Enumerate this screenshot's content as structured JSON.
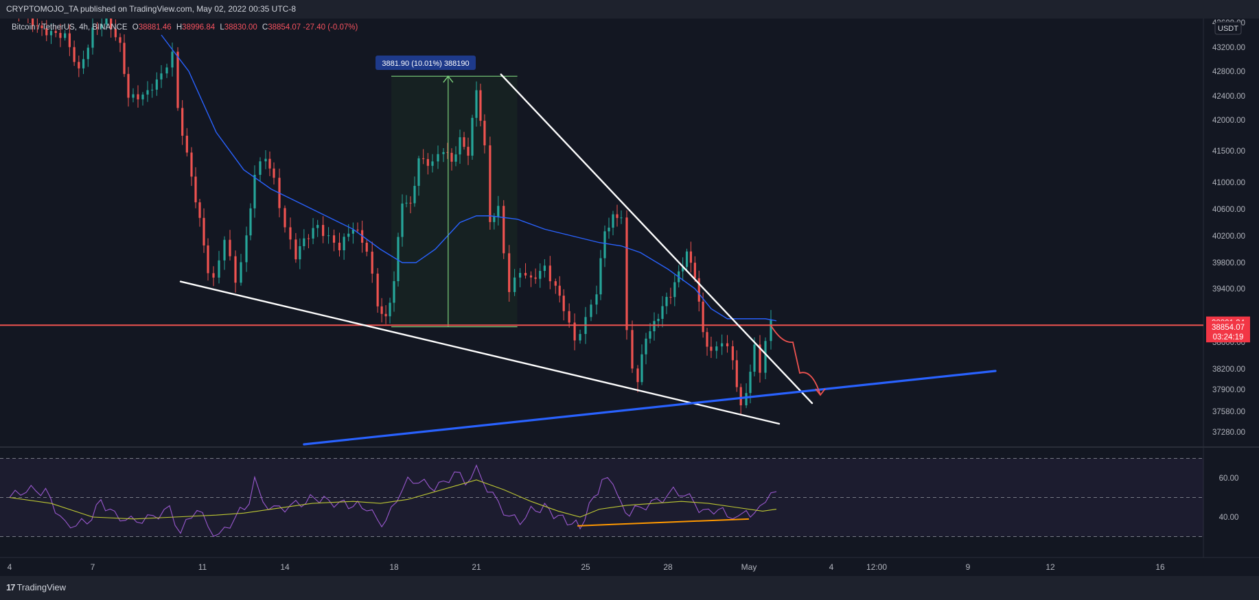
{
  "header": {
    "publish_line": "CRYPTOMOJO_TA published on TradingView.com, May 02, 2022 00:35 UTC-8"
  },
  "legend": {
    "symbol": "Bitcoin / TetherUS, 4h, BINANCE",
    "o_label": "O",
    "o": "38881.46",
    "h_label": "H",
    "h": "38996.84",
    "l_label": "L",
    "l": "38830.00",
    "c_label": "C",
    "c": "38854.07",
    "change": "-27.40 (-0.07%)"
  },
  "footer": {
    "logo_mark": "17",
    "logo_text": "TradingView"
  },
  "chart_data": [
    {
      "type": "candlestick",
      "title": "Bitcoin / TetherUS, 4h, BINANCE",
      "currency_badge": "USDT",
      "y_ticks": [
        "43200.00",
        "42800.00",
        "42400.00",
        "42000.00",
        "41500.00",
        "41000.00",
        "40600.00",
        "40200.00",
        "39800.00",
        "39400.00",
        "38600.00",
        "38200.00",
        "37900.00",
        "37580.00",
        "37280.00"
      ],
      "y_top_partial_tick": "43600.00",
      "x_ticks": [
        {
          "label": "4",
          "date": "2022-04-04"
        },
        {
          "label": "7",
          "date": "2022-04-07"
        },
        {
          "label": "11",
          "date": "2022-04-11"
        },
        {
          "label": "14",
          "date": "2022-04-14"
        },
        {
          "label": "18",
          "date": "2022-04-18"
        },
        {
          "label": "21",
          "date": "2022-04-21"
        },
        {
          "label": "25",
          "date": "2022-04-25"
        },
        {
          "label": "28",
          "date": "2022-04-28"
        },
        {
          "label": "May",
          "date": "2022-05-01"
        },
        {
          "label": "4",
          "date": "2022-05-04"
        },
        {
          "label": "12:00",
          "date": "2022-05-05"
        },
        {
          "label": "9",
          "date": "2022-05-09"
        },
        {
          "label": "12",
          "date": "2022-05-12"
        },
        {
          "label": "16",
          "date": "2022-05-16"
        }
      ],
      "close_path": [
        [
          4.0,
          43900
        ],
        [
          5.0,
          43550
        ],
        [
          6.0,
          43350
        ],
        [
          6.5,
          42800
        ],
        [
          7.0,
          43500
        ],
        [
          7.5,
          43650
        ],
        [
          8.0,
          43200
        ],
        [
          8.3,
          42400
        ],
        [
          9.0,
          42450
        ],
        [
          9.5,
          42700
        ],
        [
          9.9,
          43100
        ],
        [
          10.1,
          42200
        ],
        [
          10.6,
          41100
        ],
        [
          10.9,
          40400
        ],
        [
          11.2,
          39650
        ],
        [
          11.4,
          39500
        ],
        [
          11.8,
          40200
        ],
        [
          12.2,
          39550
        ],
        [
          12.6,
          40150
        ],
        [
          12.9,
          41100
        ],
        [
          13.3,
          41400
        ],
        [
          13.6,
          41050
        ],
        [
          14.0,
          40350
        ],
        [
          14.4,
          39900
        ],
        [
          14.7,
          40100
        ],
        [
          15.2,
          40350
        ],
        [
          15.6,
          40200
        ],
        [
          16.0,
          40050
        ],
        [
          16.5,
          40300
        ],
        [
          17.0,
          40000
        ],
        [
          17.4,
          39200
        ],
        [
          17.7,
          38950
        ],
        [
          18.0,
          39500
        ],
        [
          18.3,
          40700
        ],
        [
          18.6,
          40650
        ],
        [
          18.9,
          41400
        ],
        [
          19.4,
          41300
        ],
        [
          19.8,
          41500
        ],
        [
          20.1,
          41300
        ],
        [
          20.4,
          41700
        ],
        [
          20.7,
          41500
        ],
        [
          21.0,
          42500
        ],
        [
          21.3,
          41500
        ],
        [
          21.5,
          40400
        ],
        [
          21.8,
          40600
        ],
        [
          22.2,
          39400
        ],
        [
          22.6,
          39700
        ],
        [
          23.0,
          39500
        ],
        [
          23.5,
          39700
        ],
        [
          23.9,
          39450
        ],
        [
          24.2,
          39150
        ],
        [
          24.6,
          38600
        ],
        [
          25.0,
          38900
        ],
        [
          25.4,
          39350
        ],
        [
          25.7,
          40300
        ],
        [
          26.0,
          40500
        ],
        [
          26.3,
          40500
        ],
        [
          26.5,
          38700
        ],
        [
          26.7,
          38200
        ],
        [
          26.9,
          38000
        ],
        [
          27.2,
          38700
        ],
        [
          27.5,
          38900
        ],
        [
          27.8,
          39150
        ],
        [
          28.1,
          39300
        ],
        [
          28.4,
          39600
        ],
        [
          28.7,
          39950
        ],
        [
          29.0,
          39650
        ],
        [
          29.3,
          38750
        ],
        [
          29.6,
          38400
        ],
        [
          30.0,
          38600
        ],
        [
          30.4,
          38350
        ],
        [
          30.7,
          37650
        ],
        [
          30.9,
          37900
        ],
        [
          31.2,
          38500
        ],
        [
          31.4,
          38150
        ],
        [
          31.6,
          38600
        ],
        [
          31.8,
          38850
        ]
      ],
      "moving_average_path": [
        [
          9.5,
          43400
        ],
        [
          10.5,
          42800
        ],
        [
          11.5,
          41800
        ],
        [
          12.5,
          41200
        ],
        [
          13.5,
          40900
        ],
        [
          14.5,
          40700
        ],
        [
          15.5,
          40500
        ],
        [
          16.5,
          40300
        ],
        [
          17.5,
          40000
        ],
        [
          18.3,
          39800
        ],
        [
          18.8,
          39800
        ],
        [
          19.5,
          40000
        ],
        [
          20.4,
          40400
        ],
        [
          21.0,
          40500
        ],
        [
          21.5,
          40500
        ],
        [
          22.5,
          40450
        ],
        [
          23.5,
          40300
        ],
        [
          24.5,
          40200
        ],
        [
          25.5,
          40100
        ],
        [
          26.3,
          40050
        ],
        [
          27.0,
          39950
        ],
        [
          28.0,
          39700
        ],
        [
          29.0,
          39400
        ],
        [
          29.6,
          39100
        ],
        [
          30.2,
          38950
        ],
        [
          31.0,
          38950
        ],
        [
          31.6,
          38950
        ],
        [
          32.0,
          38920
        ]
      ],
      "horizontal_level": 38854.07,
      "price_labels": {
        "ask": "38891.34",
        "last": "38854.07",
        "countdown": "03:24:19"
      },
      "measure_tool": {
        "label": "3881.90 (10.01%) 388190",
        "from_price": 38830,
        "to_price": 42720,
        "from_date": 17.9,
        "to_date": 22.5
      },
      "trendlines": {
        "upper_resistance": [
          [
            21.9,
            42750
          ],
          [
            33.3,
            37700
          ]
        ],
        "lower_support": [
          [
            10.2,
            39510
          ],
          [
            32.1,
            37400
          ]
        ],
        "blue_support": [
          [
            14.7,
            37100
          ],
          [
            40.0,
            38170
          ]
        ]
      },
      "projection_arrow": [
        [
          31.8,
          38850
        ],
        [
          32.2,
          38580
        ],
        [
          32.6,
          38600
        ],
        [
          32.85,
          38140
        ],
        [
          33.3,
          38200
        ],
        [
          33.6,
          37820
        ]
      ]
    },
    {
      "type": "line",
      "title": "RSI",
      "y_ticks": [
        "60.00",
        "40.00"
      ],
      "band": [
        30,
        70
      ],
      "rsi_points": [
        [
          4.0,
          50
        ],
        [
          4.6,
          54
        ],
        [
          5.3,
          53
        ],
        [
          6.0,
          36
        ],
        [
          6.8,
          37
        ],
        [
          7.3,
          48
        ],
        [
          7.8,
          41
        ],
        [
          8.4,
          38
        ],
        [
          9.0,
          39
        ],
        [
          9.8,
          44
        ],
        [
          10.2,
          32
        ],
        [
          10.8,
          45
        ],
        [
          11.2,
          35
        ],
        [
          11.6,
          30
        ],
        [
          12.2,
          40
        ],
        [
          12.7,
          48
        ],
        [
          12.9,
          58
        ],
        [
          13.2,
          48
        ],
        [
          13.6,
          44
        ],
        [
          14.0,
          45
        ],
        [
          14.6,
          47
        ],
        [
          15.1,
          50
        ],
        [
          15.6,
          48
        ],
        [
          16.0,
          47
        ],
        [
          16.5,
          46
        ],
        [
          17.0,
          45
        ],
        [
          17.4,
          38
        ],
        [
          17.7,
          37
        ],
        [
          18.1,
          50
        ],
        [
          18.5,
          58
        ],
        [
          18.9,
          59
        ],
        [
          19.3,
          55
        ],
        [
          19.8,
          57
        ],
        [
          20.2,
          63
        ],
        [
          20.6,
          58
        ],
        [
          21.0,
          64
        ],
        [
          21.4,
          55
        ],
        [
          21.8,
          47
        ],
        [
          22.2,
          40
        ],
        [
          22.6,
          38
        ],
        [
          23.0,
          43
        ],
        [
          23.5,
          45
        ],
        [
          24.0,
          40
        ],
        [
          24.5,
          37
        ],
        [
          24.8,
          35
        ],
        [
          25.3,
          50
        ],
        [
          25.6,
          58
        ],
        [
          26.0,
          59
        ],
        [
          26.3,
          45
        ],
        [
          26.6,
          42
        ],
        [
          27.0,
          45
        ],
        [
          27.6,
          48
        ],
        [
          28.2,
          53
        ],
        [
          28.6,
          52
        ],
        [
          29.0,
          47
        ],
        [
          29.3,
          42
        ],
        [
          29.7,
          44
        ],
        [
          30.2,
          42
        ],
        [
          30.6,
          38
        ],
        [
          30.9,
          44
        ],
        [
          31.2,
          40
        ],
        [
          31.6,
          50
        ],
        [
          32.0,
          53
        ]
      ],
      "signal_points": [
        [
          4.0,
          50
        ],
        [
          5.5,
          47
        ],
        [
          7.0,
          40
        ],
        [
          8.5,
          39
        ],
        [
          10.0,
          40
        ],
        [
          11.5,
          41
        ],
        [
          12.5,
          42
        ],
        [
          13.5,
          44
        ],
        [
          15.0,
          47
        ],
        [
          16.5,
          48
        ],
        [
          17.5,
          47
        ],
        [
          18.5,
          49
        ],
        [
          19.5,
          53
        ],
        [
          20.5,
          57
        ],
        [
          21.0,
          59
        ],
        [
          22.0,
          54
        ],
        [
          23.0,
          48
        ],
        [
          24.0,
          43
        ],
        [
          24.8,
          40
        ],
        [
          25.5,
          44
        ],
        [
          26.5,
          46
        ],
        [
          27.5,
          47
        ],
        [
          28.5,
          48
        ],
        [
          29.5,
          47
        ],
        [
          30.5,
          45
        ],
        [
          31.5,
          43
        ],
        [
          32.0,
          44
        ]
      ],
      "divergence_line": [
        [
          24.7,
          35.5
        ],
        [
          31.0,
          39.0
        ]
      ]
    }
  ]
}
